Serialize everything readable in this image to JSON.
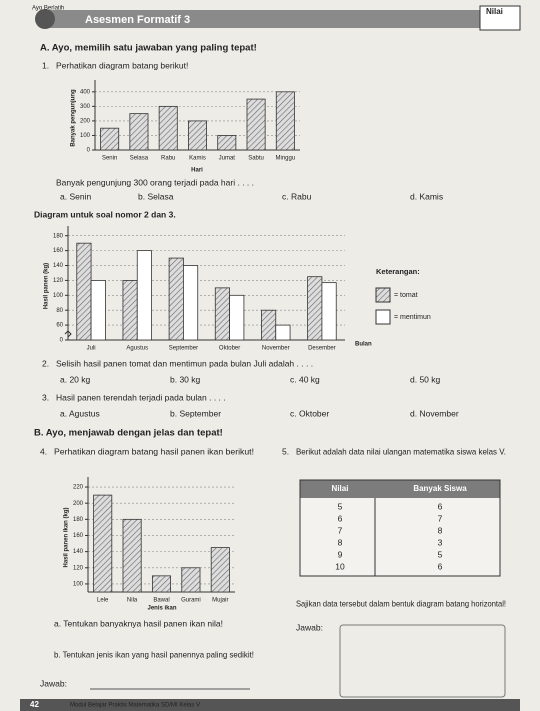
{
  "header": {
    "badge": "Ayo Berlatih",
    "title": "Asesmen Formatif 3",
    "score_label": "Nilai"
  },
  "section_a": {
    "title": "A. Ayo, memilih satu jawaban yang paling tepat!",
    "q1": {
      "number": "1.",
      "intro": "Perhatikan diagram batang berikut!",
      "question": "Banyak pengunjung 300 orang terjadi pada hari . . . .",
      "options": [
        "a.  Senin",
        "b.  Selasa",
        "c.  Rabu",
        "d.  Kamis"
      ]
    },
    "chart_note": "Diagram untuk soal nomor 2 dan 3.",
    "q2": {
      "number": "2.",
      "question": "Selisih hasil panen tomat dan mentimun pada bulan Juli adalah . . . .",
      "options": [
        "a.  20 kg",
        "b.  30 kg",
        "c.  40 kg",
        "d.  50 kg"
      ]
    },
    "q3": {
      "number": "3.",
      "question": "Hasil panen terendah terjadi pada bulan . . . .",
      "options": [
        "a.  Agustus",
        "b.  September",
        "c.  Oktober",
        "d.  November"
      ]
    }
  },
  "chart1": {
    "type": "bar",
    "xlabel": "Hari",
    "ylabel": "Banyak pengunjung",
    "categories": [
      "Senin",
      "Selasa",
      "Rabu",
      "Kamis",
      "Jumat",
      "Sabtu",
      "Minggu"
    ],
    "series": [
      {
        "fill": "hatch",
        "values": [
          150,
          250,
          300,
          200,
          100,
          350,
          400
        ]
      }
    ],
    "ylim": [
      0,
      440
    ],
    "yticks": [
      0,
      100,
      200,
      300,
      400
    ],
    "grid": true,
    "axis_break": false
  },
  "chart2": {
    "type": "bar",
    "xlabel": "Bulan",
    "ylabel": "Hasil panen (kg)",
    "legend_title": "Keterangan:",
    "categories": [
      "Juli",
      "Agustus",
      "September",
      "Oktober",
      "November",
      "Desember"
    ],
    "series": [
      {
        "name": "= tomat",
        "fill": "hatch",
        "values": [
          170,
          120,
          150,
          110,
          80,
          125
        ]
      },
      {
        "name": "= mentimun",
        "fill": "white",
        "values": [
          120,
          160,
          140,
          100,
          60,
          117
        ]
      }
    ],
    "ylim": [
      0,
      185
    ],
    "yticks": [
      0,
      60,
      80,
      100,
      120,
      140,
      160,
      180
    ],
    "grid": true,
    "axis_break": true
  },
  "section_b": {
    "title": "B. Ayo, menjawab dengan jelas dan tepat!",
    "q4": {
      "number": "4.",
      "intro": "Perhatikan diagram batang hasil panen ikan berikut!",
      "a": "a.  Tentukan banyaknya hasil panen ikan nila!",
      "b": "b.  Tentukan jenis ikan yang hasil panennya paling sedikit!",
      "answer_label": "Jawab:"
    },
    "q5": {
      "number": "5.",
      "intro": "Berikut adalah data nilai ulangan matematika siswa kelas V.",
      "task": "Sajikan data tersebut dalam bentuk diagram batang horizontal!",
      "answer_label": "Jawab:"
    }
  },
  "chart3": {
    "type": "bar",
    "xlabel": "Jenis ikan",
    "ylabel": "Hasil panen ikan (kg)",
    "categories": [
      "Lele",
      "Nila",
      "Bawal",
      "Gurami",
      "Mujair"
    ],
    "series": [
      {
        "fill": "hatch",
        "values": [
          210,
          180,
          110,
          120,
          145
        ]
      }
    ],
    "ylim": [
      90,
      225
    ],
    "yticks": [
      100,
      120,
      140,
      160,
      180,
      200,
      220
    ],
    "grid": true,
    "axis_break": false
  },
  "table": {
    "header": [
      "Nilai",
      "Banyak Siswa"
    ],
    "rows": [
      [
        5,
        6
      ],
      [
        6,
        7
      ],
      [
        7,
        8
      ],
      [
        8,
        3
      ],
      [
        9,
        5
      ],
      [
        10,
        6
      ]
    ]
  },
  "footer": {
    "page": "42",
    "book": "Modul Belajar Praktis Matematika SD/MI Kelas V"
  }
}
